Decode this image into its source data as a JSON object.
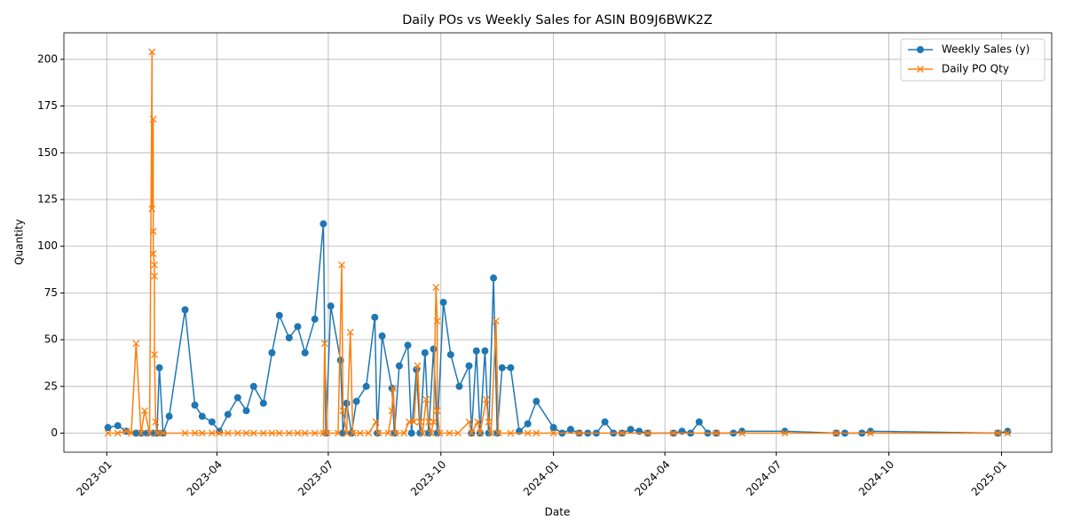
{
  "chart_data": {
    "type": "line",
    "title": "Daily POs vs Weekly Sales for ASIN B09J6BWK2Z",
    "x_label": "Date",
    "y_label": "Quantity",
    "grid": true,
    "legend": "upper right",
    "xlim": [
      "2022-11-27",
      "2025-02-11"
    ],
    "xticks": [
      {
        "value": "2023-01-01",
        "label": "2023-01"
      },
      {
        "value": "2023-04-01",
        "label": "2023-04"
      },
      {
        "value": "2023-07-01",
        "label": "2023-07"
      },
      {
        "value": "2023-10-01",
        "label": "2023-10"
      },
      {
        "value": "2024-01-01",
        "label": "2024-01"
      },
      {
        "value": "2024-04-01",
        "label": "2024-04"
      },
      {
        "value": "2024-07-01",
        "label": "2024-07"
      },
      {
        "value": "2024-10-01",
        "label": "2024-10"
      },
      {
        "value": "2025-01-01",
        "label": "2025-01"
      }
    ],
    "ylim": [
      -10.2,
      214.2
    ],
    "yticks": [
      0,
      25,
      50,
      75,
      100,
      125,
      150,
      175,
      200
    ],
    "series": [
      {
        "name": "Weekly Sales (y)",
        "color": "#1f77b4",
        "marker": "o",
        "x": [
          "2023-01-02",
          "2023-01-10",
          "2023-01-17",
          "2023-01-25",
          "2023-01-29",
          "2023-02-03",
          "2023-02-08",
          "2023-02-11",
          "2023-02-13",
          "2023-02-16",
          "2023-02-21",
          "2023-03-06",
          "2023-03-14",
          "2023-03-20",
          "2023-03-28",
          "2023-04-03",
          "2023-04-10",
          "2023-04-18",
          "2023-04-25",
          "2023-05-01",
          "2023-05-09",
          "2023-05-16",
          "2023-05-22",
          "2023-05-30",
          "2023-06-06",
          "2023-06-12",
          "2023-06-20",
          "2023-06-27",
          "2023-06-29",
          "2023-07-03",
          "2023-07-11",
          "2023-07-13",
          "2023-07-16",
          "2023-07-20",
          "2023-07-24",
          "2023-08-01",
          "2023-08-08",
          "2023-08-10",
          "2023-08-14",
          "2023-08-22",
          "2023-08-24",
          "2023-08-28",
          "2023-09-04",
          "2023-09-07",
          "2023-09-11",
          "2023-09-14",
          "2023-09-18",
          "2023-09-21",
          "2023-09-25",
          "2023-09-28",
          "2023-10-03",
          "2023-10-09",
          "2023-10-16",
          "2023-10-24",
          "2023-10-26",
          "2023-10-30",
          "2023-11-02",
          "2023-11-06",
          "2023-11-09",
          "2023-11-13",
          "2023-11-16",
          "2023-11-20",
          "2023-11-27",
          "2023-12-04",
          "2023-12-11",
          "2023-12-18",
          "2024-01-01",
          "2024-01-08",
          "2024-01-15",
          "2024-01-22",
          "2024-01-29",
          "2024-02-05",
          "2024-02-12",
          "2024-02-19",
          "2024-02-26",
          "2024-03-04",
          "2024-03-11",
          "2024-03-18",
          "2024-04-08",
          "2024-04-15",
          "2024-04-22",
          "2024-04-29",
          "2024-05-06",
          "2024-05-13",
          "2024-05-27",
          "2024-06-03",
          "2024-07-08",
          "2024-08-19",
          "2024-08-26",
          "2024-09-09",
          "2024-09-16",
          "2024-12-29",
          "2025-01-06"
        ],
        "values": [
          3,
          4,
          1,
          0,
          0,
          0,
          0,
          0,
          35,
          0,
          9,
          66,
          15,
          9,
          6,
          1,
          10,
          19,
          12,
          25,
          16,
          43,
          63,
          51,
          57,
          43,
          61,
          112,
          0,
          68,
          39,
          0,
          16,
          0,
          17,
          25,
          62,
          0,
          52,
          24,
          0,
          36,
          47,
          0,
          34,
          0,
          43,
          0,
          45,
          0,
          70,
          42,
          25,
          36,
          0,
          44,
          0,
          44,
          0,
          83,
          0,
          35,
          35,
          1,
          5,
          17,
          3,
          0,
          2,
          0,
          0,
          0,
          6,
          0,
          0,
          2,
          1,
          0,
          0,
          1,
          0,
          6,
          0,
          0,
          0,
          1,
          1,
          0,
          0,
          0,
          1,
          0,
          1
        ]
      },
      {
        "name": "Daily PO Qty",
        "color": "#ff7f0e",
        "marker": "x",
        "x": [
          "2023-01-02",
          "2023-01-10",
          "2023-01-17",
          "2023-01-21",
          "2023-01-25",
          "2023-01-29",
          "2023-02-01",
          "2023-02-05",
          "2023-02-07",
          "2023-02-07",
          "2023-02-08",
          "2023-02-08",
          "2023-02-08",
          "2023-02-09",
          "2023-02-09",
          "2023-02-09",
          "2023-02-10",
          "2023-02-11",
          "2023-02-16",
          "2023-03-06",
          "2023-03-14",
          "2023-03-20",
          "2023-03-28",
          "2023-04-03",
          "2023-04-10",
          "2023-04-18",
          "2023-04-25",
          "2023-05-01",
          "2023-05-09",
          "2023-05-16",
          "2023-05-22",
          "2023-05-30",
          "2023-06-06",
          "2023-06-12",
          "2023-06-20",
          "2023-06-27",
          "2023-06-28",
          "2023-06-30",
          "2023-07-09",
          "2023-07-12",
          "2023-07-13",
          "2023-07-16",
          "2023-07-19",
          "2023-07-21",
          "2023-07-27",
          "2023-08-03",
          "2023-08-09",
          "2023-08-11",
          "2023-08-19",
          "2023-08-22",
          "2023-08-23",
          "2023-08-25",
          "2023-09-01",
          "2023-09-05",
          "2023-09-09",
          "2023-09-12",
          "2023-09-14",
          "2023-09-16",
          "2023-09-19",
          "2023-09-21",
          "2023-09-23",
          "2023-09-25",
          "2023-09-27",
          "2023-09-28",
          "2023-09-28",
          "2023-09-30",
          "2023-10-08",
          "2023-10-15",
          "2023-10-24",
          "2023-10-26",
          "2023-10-31",
          "2023-11-02",
          "2023-11-07",
          "2023-11-09",
          "2023-11-11",
          "2023-11-15",
          "2023-11-17",
          "2023-11-27",
          "2023-12-11",
          "2023-12-18",
          "2024-01-01",
          "2024-01-22",
          "2024-02-26",
          "2024-03-18",
          "2024-04-08",
          "2024-05-13",
          "2024-06-03",
          "2024-07-08",
          "2024-08-19",
          "2024-09-16",
          "2024-12-29",
          "2025-01-06"
        ],
        "values": [
          0,
          0,
          1,
          0,
          48,
          0,
          12,
          0,
          204,
          120,
          168,
          108,
          96,
          90,
          84,
          42,
          6,
          0,
          0,
          0,
          0,
          0,
          0,
          0,
          0,
          0,
          0,
          0,
          0,
          0,
          0,
          0,
          0,
          0,
          0,
          0,
          48,
          0,
          0,
          90,
          12,
          0,
          54,
          0,
          0,
          0,
          6,
          0,
          0,
          12,
          24,
          0,
          0,
          6,
          6,
          36,
          6,
          0,
          18,
          6,
          0,
          6,
          78,
          60,
          12,
          0,
          0,
          0,
          6,
          0,
          6,
          0,
          18,
          6,
          0,
          60,
          0,
          0,
          0,
          0,
          0,
          0,
          0,
          0,
          0,
          0,
          0,
          0,
          0,
          0,
          0,
          0
        ]
      }
    ]
  }
}
